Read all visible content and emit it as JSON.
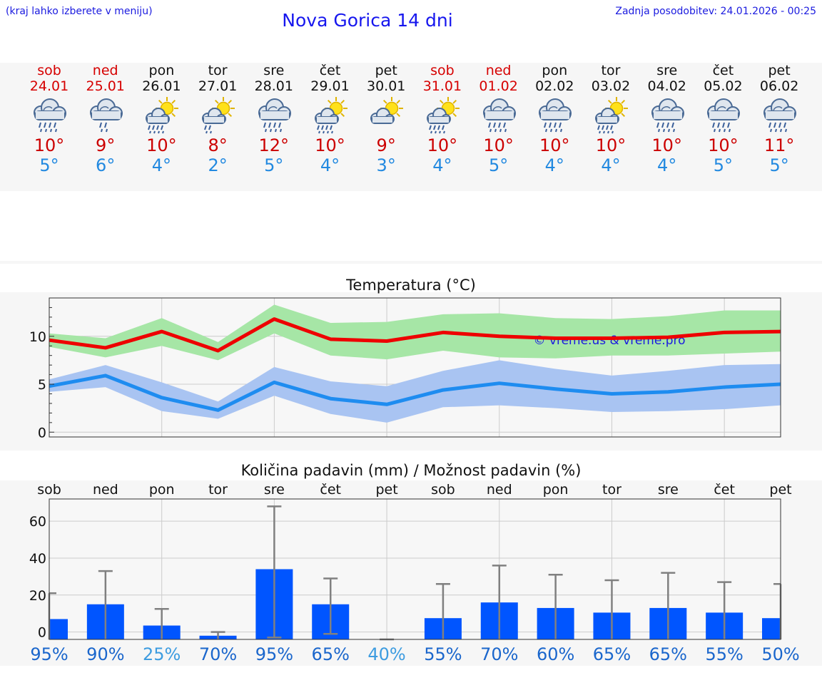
{
  "header": {
    "hint": "(kraj lahko izberete v meniju)",
    "title": "Nova Gorica 14 dni",
    "updated": "Zadnja posodobitev: 24.01.2026 - 00:25"
  },
  "days": [
    {
      "name": "sob",
      "date": "24.01",
      "weekend": true,
      "icon": "rain-cloud-icon",
      "max": "10°",
      "min": "5°"
    },
    {
      "name": "ned",
      "date": "25.01",
      "weekend": true,
      "icon": "light-rain-cloud-icon",
      "max": "9°",
      "min": "6°"
    },
    {
      "name": "pon",
      "date": "26.01",
      "weekend": false,
      "icon": "sun-rain-cloud-icon",
      "max": "10°",
      "min": "4°"
    },
    {
      "name": "tor",
      "date": "27.01",
      "weekend": false,
      "icon": "sun-light-rain-icon",
      "max": "8°",
      "min": "2°"
    },
    {
      "name": "sre",
      "date": "28.01",
      "weekend": false,
      "icon": "rain-cloud-icon",
      "max": "12°",
      "min": "5°"
    },
    {
      "name": "čet",
      "date": "29.01",
      "weekend": false,
      "icon": "sun-rain-cloud-icon",
      "max": "10°",
      "min": "4°"
    },
    {
      "name": "pet",
      "date": "30.01",
      "weekend": false,
      "icon": "sun-cloud-icon",
      "max": "9°",
      "min": "3°"
    },
    {
      "name": "sob",
      "date": "31.01",
      "weekend": true,
      "icon": "sun-rain-cloud-icon",
      "max": "10°",
      "min": "4°"
    },
    {
      "name": "ned",
      "date": "01.02",
      "weekend": true,
      "icon": "rain-cloud-icon",
      "max": "10°",
      "min": "5°"
    },
    {
      "name": "pon",
      "date": "02.02",
      "weekend": false,
      "icon": "rain-cloud-icon",
      "max": "10°",
      "min": "4°"
    },
    {
      "name": "tor",
      "date": "03.02",
      "weekend": false,
      "icon": "sun-rain-cloud-icon",
      "max": "10°",
      "min": "4°"
    },
    {
      "name": "sre",
      "date": "04.02",
      "weekend": false,
      "icon": "rain-cloud-icon",
      "max": "10°",
      "min": "4°"
    },
    {
      "name": "čet",
      "date": "05.02",
      "weekend": false,
      "icon": "rain-cloud-icon",
      "max": "10°",
      "min": "5°"
    },
    {
      "name": "pet",
      "date": "06.02",
      "weekend": false,
      "icon": "rain-cloud-icon",
      "max": "11°",
      "min": "5°"
    }
  ],
  "chart_data": [
    {
      "type": "line",
      "title": "Temperatura (°C)",
      "watermark": "© vreme.us & vreme.pro",
      "ylim": [
        -0.5,
        14
      ],
      "yticks": [
        0,
        5,
        10
      ],
      "x": [
        0,
        1,
        2,
        3,
        4,
        5,
        6,
        7,
        8,
        9,
        10,
        11,
        12,
        13
      ],
      "series": [
        {
          "name": "max",
          "color": "#ee0000",
          "values": [
            9.6,
            8.8,
            10.5,
            8.5,
            11.8,
            9.7,
            9.5,
            10.4,
            10.0,
            9.8,
            9.8,
            9.9,
            10.4,
            10.5
          ],
          "band_low": [
            8.9,
            7.8,
            9.0,
            7.5,
            10.3,
            8.0,
            7.6,
            8.5,
            7.8,
            7.7,
            8.0,
            8.0,
            8.2,
            8.4
          ],
          "band_high": [
            10.3,
            9.8,
            11.9,
            9.4,
            13.3,
            11.4,
            11.5,
            12.3,
            12.4,
            11.9,
            11.8,
            12.1,
            12.7,
            12.7
          ],
          "band_color": "#a6e6a6"
        },
        {
          "name": "min",
          "color": "#1e8cf0",
          "values": [
            4.8,
            5.9,
            3.6,
            2.3,
            5.2,
            3.5,
            2.9,
            4.4,
            5.1,
            4.5,
            4.0,
            4.2,
            4.7,
            5.0
          ],
          "band_low": [
            4.2,
            4.7,
            2.2,
            1.4,
            3.8,
            1.9,
            1.0,
            2.6,
            2.8,
            2.5,
            2.1,
            2.2,
            2.4,
            2.8
          ],
          "band_high": [
            5.5,
            7.0,
            5.2,
            3.2,
            6.8,
            5.3,
            4.8,
            6.4,
            7.5,
            6.6,
            5.9,
            6.4,
            7.0,
            7.1
          ],
          "band_color": "#a9c4f2"
        }
      ]
    },
    {
      "type": "bar",
      "title": "Količina padavin (mm) / Možnost padavin (%)",
      "ylim": [
        -4,
        72
      ],
      "yticks": [
        0,
        20,
        40,
        60
      ],
      "categories": [
        "sob",
        "ned",
        "pon",
        "tor",
        "sre",
        "čet",
        "pet",
        "sob",
        "ned",
        "pon",
        "tor",
        "sre",
        "čet",
        "pet"
      ],
      "values": [
        7,
        15,
        3.5,
        -2,
        34,
        15,
        -4,
        7.5,
        16,
        13,
        10.5,
        13,
        10.5,
        7.5
      ],
      "error_low": [
        -4,
        -4,
        -4,
        -4,
        -3,
        -1,
        -4,
        -4,
        -4,
        -4,
        -4,
        -4,
        -4,
        -4
      ],
      "error_high": [
        21,
        33,
        12.5,
        0,
        68,
        29,
        -4,
        26,
        36,
        31,
        28,
        32,
        27,
        26
      ],
      "bar_color": "#0055ff",
      "error_color": "#808080",
      "probability_labels": [
        "95%",
        "90%",
        "25%",
        "70%",
        "95%",
        "65%",
        "40%",
        "55%",
        "70%",
        "60%",
        "65%",
        "65%",
        "55%",
        "50%"
      ],
      "probability_colors": [
        "#1a66cc",
        "#1a66cc",
        "#3d9ce0",
        "#1a66cc",
        "#1a66cc",
        "#1a66cc",
        "#3d9ce0",
        "#1a66cc",
        "#1a66cc",
        "#1a66cc",
        "#1a66cc",
        "#1a66cc",
        "#1a66cc",
        "#1a66cc"
      ]
    }
  ]
}
